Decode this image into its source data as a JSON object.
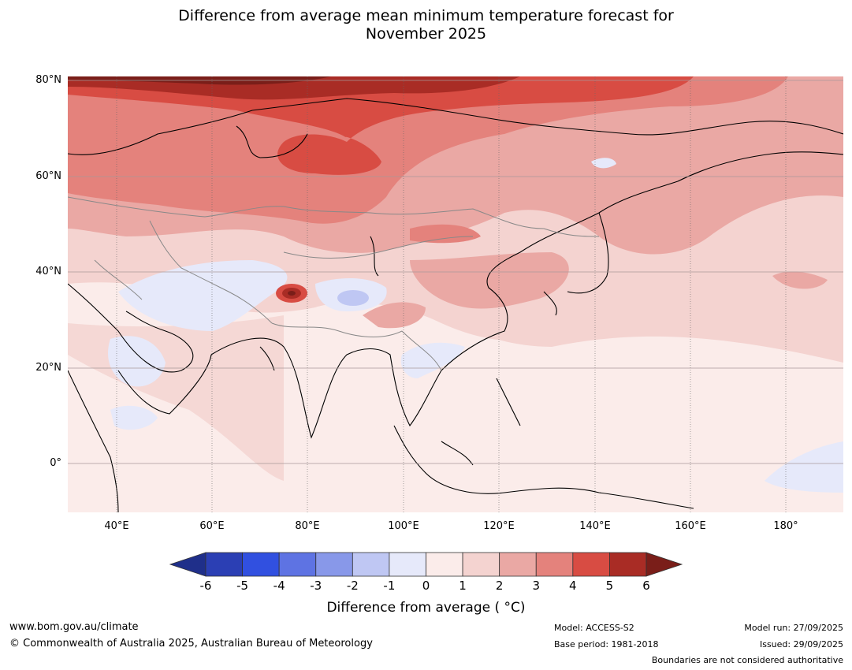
{
  "title": {
    "line1": "Difference from average mean minimum temperature forecast for",
    "line2": "November 2025"
  },
  "map": {
    "lat_labels": [
      "80°N",
      "60°N",
      "40°N",
      "20°N",
      "0°"
    ],
    "lon_labels": [
      "40°E",
      "60°E",
      "80°E",
      "100°E",
      "120°E",
      "140°E",
      "160°E",
      "180°"
    ],
    "extent": {
      "lon": [
        30,
        192
      ],
      "lat": [
        -10,
        81
      ]
    }
  },
  "chart_data": {
    "type": "heatmap",
    "colorbar": {
      "ticks": [
        "-6",
        "-5",
        "-4",
        "-3",
        "-2",
        "-1",
        "0",
        "1",
        "2",
        "3",
        "4",
        "5",
        "6"
      ],
      "colors": [
        "#1f2f8a",
        "#2b3fb4",
        "#3150e0",
        "#5e73e3",
        "#8898e9",
        "#bfc7f3",
        "#e6e9fa",
        "#fbecea",
        "#f4d3d0",
        "#eaa8a4",
        "#e4827c",
        "#d84c43",
        "#a92c25",
        "#7a1e19"
      ],
      "label": "Difference from average ( °C)"
    }
  },
  "footer": {
    "website": "www.bom.gov.au/climate",
    "copyright": "© Commonwealth of Australia 2025, Australian Bureau of Meteorology",
    "model": "Model: ACCESS-S2",
    "base_period": "Base period: 1981-2018",
    "model_run": "Model run: 27/09/2025",
    "issued": "Issued: 29/09/2025",
    "disclaimer": "Boundaries are not considered authoritative"
  }
}
